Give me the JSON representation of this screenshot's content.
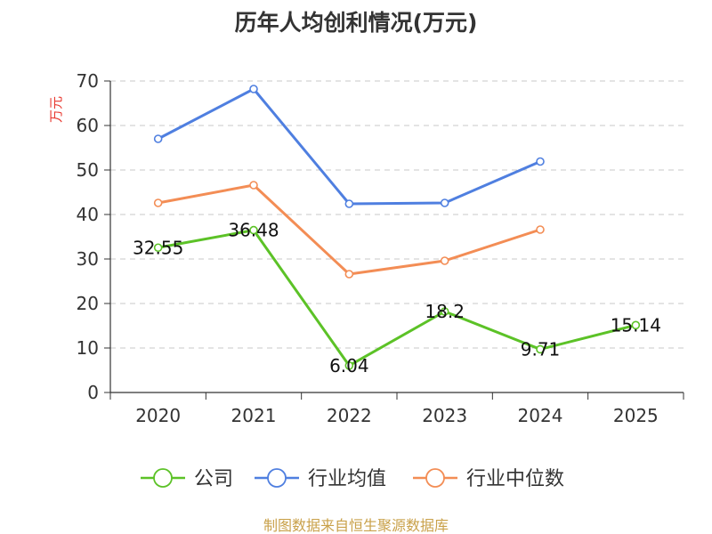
{
  "chart_data": {
    "type": "line",
    "title": "历年人均创利情况(万元)",
    "ylabel": "万元",
    "xlabel": "",
    "categories": [
      "2020",
      "2021",
      "2022",
      "2023",
      "2024",
      "2025"
    ],
    "yticks": [
      "0",
      "10",
      "20",
      "30",
      "40",
      "50",
      "60",
      "70"
    ],
    "ylim": [
      0,
      70
    ],
    "grid": true,
    "legend_position": "bottom",
    "series": [
      {
        "name": "公司",
        "color": "#5cc227",
        "values": [
          32.55,
          36.48,
          6.04,
          18.2,
          9.71,
          15.14
        ],
        "labels": [
          "32.55",
          "36.48",
          "6.04",
          "18.2",
          "9.71",
          "15.14"
        ]
      },
      {
        "name": "行业均值",
        "color": "#4f7fe0",
        "values": [
          57.0,
          68.2,
          42.4,
          42.6,
          51.9,
          null
        ]
      },
      {
        "name": "行业中位数",
        "color": "#f38d55",
        "values": [
          42.6,
          46.6,
          26.6,
          29.6,
          36.6,
          null
        ]
      }
    ]
  },
  "source": "制图数据来自恒生聚源数据库"
}
